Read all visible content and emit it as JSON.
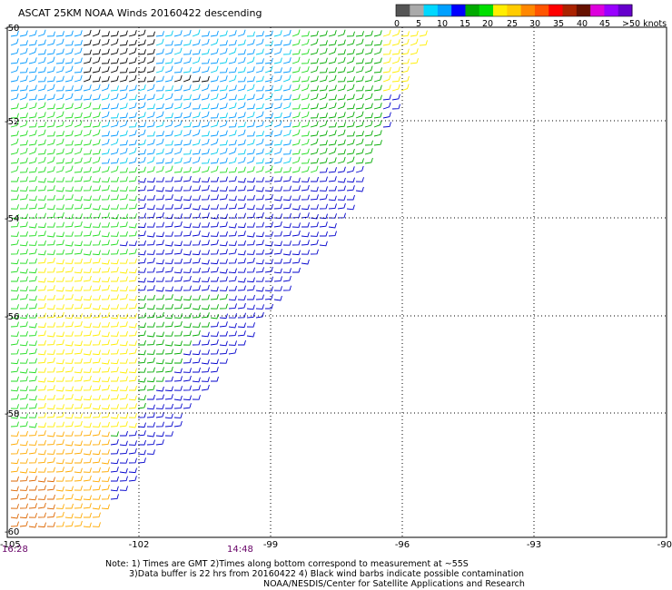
{
  "title": "ASCAT 25KM NOAA Winds 20160422 descending",
  "colorbar": {
    "labels": [
      "0",
      "5",
      "10",
      "15",
      "20",
      "25",
      "30",
      "35",
      "40",
      "45",
      ">50 knots"
    ],
    "colors": [
      "#555555",
      "#aaaaaa",
      "#00d8ff",
      "#00a0ff",
      "#0000ff",
      "#00aa00",
      "#00e000",
      "#ffee00",
      "#ffcc00",
      "#ff8800",
      "#ff5500",
      "#ff0000",
      "#aa2200",
      "#661100",
      "#dd00dd",
      "#9900ff",
      "#6600cc"
    ]
  },
  "axes": {
    "lat_labels": [
      "-50",
      "-52",
      "-54",
      "-56",
      "-58",
      "-60"
    ],
    "lon_labels": [
      "-105",
      "-102",
      "-99",
      "-96",
      "-93",
      "-90"
    ]
  },
  "times": [
    "16:28",
    "14:48"
  ],
  "notes": {
    "line1": "Note: 1) Times are GMT 2)Times along bottom correspond to measurement at ~55S",
    "line2": "3)Data buffer is 22 hrs from 20160422 4) Black wind barbs indicate possible contamination",
    "line3": "NOAA/NESDIS/Center for Satellite Applications and Research"
  },
  "wind_colors": {
    "black": "#000000",
    "cyan": "#00ccee",
    "light_blue": "#0099ff",
    "blue": "#0000cc",
    "green": "#00aa00",
    "light_green": "#22dd22",
    "yellow": "#ffee00",
    "orange": "#ffaa00",
    "dark_orange": "#dd6600"
  }
}
